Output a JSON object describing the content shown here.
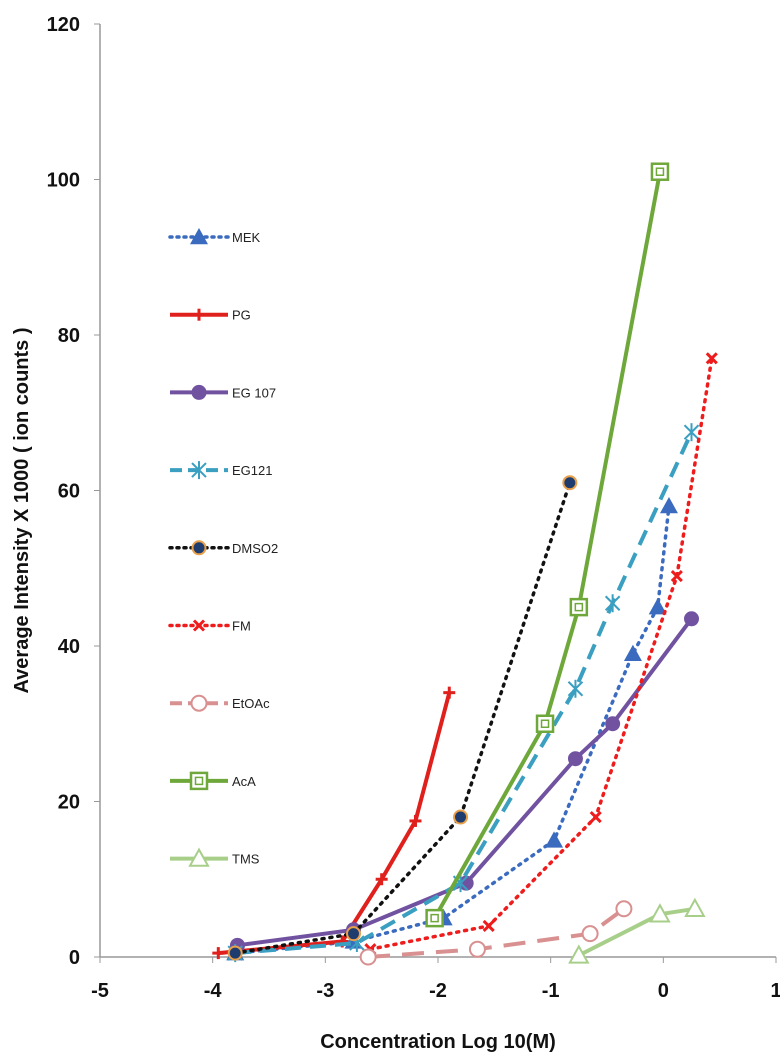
{
  "chart_data": {
    "type": "line",
    "title": "",
    "xlabel": "Concentration Log 10(M)",
    "ylabel": "Average Intensity X 1000 ( ion counts )",
    "xlim": [
      -5,
      1
    ],
    "ylim": [
      0,
      120
    ],
    "x_ticks": [
      "-5",
      "-4",
      "-3",
      "-2",
      "-1",
      "0",
      "1"
    ],
    "y_ticks": [
      "0",
      "20",
      "40",
      "60",
      "80",
      "100",
      "120"
    ],
    "grid": false,
    "legend_position": "left",
    "series": [
      {
        "name": "MEK",
        "color": "#3b6bbf",
        "dash": "dotted",
        "marker": "triangle",
        "x": [
          -3.8,
          -2.75,
          -1.95,
          -0.97,
          -0.27,
          -0.05,
          0.05
        ],
        "y": [
          0.5,
          2.0,
          5.0,
          15.0,
          39.0,
          45.0,
          58.0
        ]
      },
      {
        "name": "PG",
        "color": "#e0201c",
        "dash": "solid",
        "marker": "plus",
        "x": [
          -3.95,
          -2.85,
          -2.5,
          -2.2,
          -1.9
        ],
        "y": [
          0.5,
          2.0,
          10.0,
          17.5,
          34.0
        ]
      },
      {
        "name": "EG 107",
        "color": "#7052a0",
        "dash": "solid",
        "marker": "circle",
        "x": [
          -3.78,
          -2.75,
          -1.75,
          -0.78,
          -0.45,
          0.25
        ],
        "y": [
          1.5,
          3.5,
          9.5,
          25.5,
          30.0,
          43.5
        ]
      },
      {
        "name": "EG121",
        "color": "#3a9fc0",
        "dash": "dashed",
        "marker": "star",
        "x": [
          -3.8,
          -2.72,
          -1.8,
          -0.78,
          -0.45,
          0.25
        ],
        "y": [
          0.5,
          1.8,
          9.5,
          34.5,
          45.5,
          67.5
        ]
      },
      {
        "name": "DMSO2",
        "color": "#111111",
        "dash": "dotted",
        "marker": "dot",
        "x": [
          -3.8,
          -2.75,
          -1.8,
          -0.83
        ],
        "y": [
          0.5,
          3.0,
          18.0,
          61.0
        ]
      },
      {
        "name": "FM",
        "color": "#ee1c1c",
        "dash": "dotted",
        "marker": "x",
        "x": [
          -2.6,
          -1.55,
          -0.6,
          0.12,
          0.43
        ],
        "y": [
          1.0,
          4.0,
          18.0,
          49.0,
          77.0
        ]
      },
      {
        "name": "EtOAc",
        "color": "#d99090",
        "dash": "longdash",
        "marker": "open-circle",
        "x": [
          -2.62,
          -1.65,
          -0.65,
          -0.35
        ],
        "y": [
          0.0,
          1.0,
          3.0,
          6.2
        ]
      },
      {
        "name": "AcA",
        "color": "#6fa83a",
        "dash": "solid",
        "marker": "open-square",
        "x": [
          -2.03,
          -1.05,
          -0.75,
          -0.03
        ],
        "y": [
          5.0,
          30.0,
          45.0,
          101.0
        ]
      },
      {
        "name": "TMS",
        "color": "#a8cf8a",
        "dash": "solid",
        "marker": "open-triangle",
        "x": [
          -0.75,
          -0.03,
          0.28
        ],
        "y": [
          0.2,
          5.5,
          6.2
        ]
      }
    ]
  }
}
